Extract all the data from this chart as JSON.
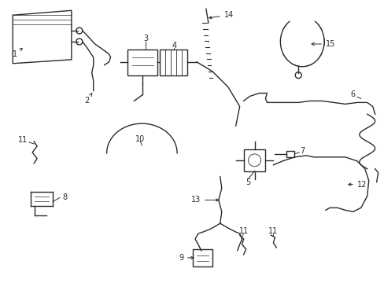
{
  "background_color": "#ffffff",
  "line_color": "#2a2a2a",
  "line_width": 1.0,
  "label_fontsize": 7.0,
  "figsize": [
    4.89,
    3.6
  ],
  "dpi": 100
}
